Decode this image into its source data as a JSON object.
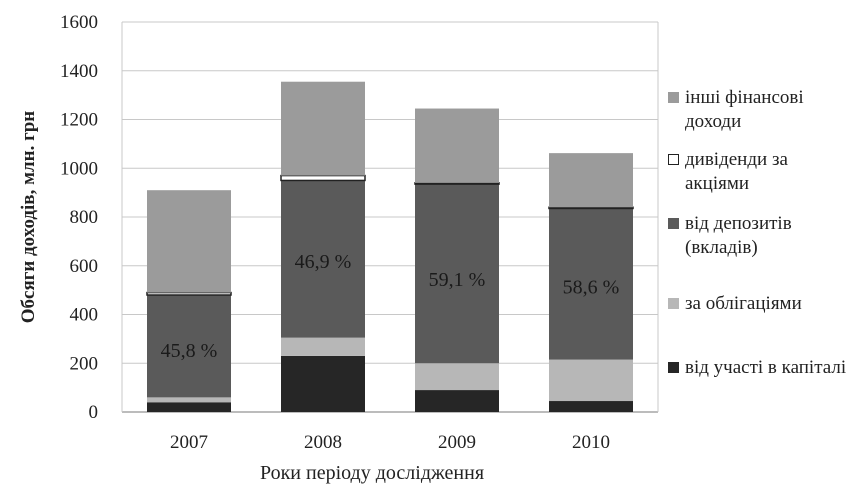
{
  "chart_data": {
    "type": "bar",
    "stacked": true,
    "categories": [
      "2007",
      "2008",
      "2009",
      "2010"
    ],
    "xlabel": "Роки періоду дослідження",
    "ylabel": "Обсяги доходів, млн. грн",
    "ylim": [
      0,
      1600
    ],
    "yticks": [
      "0",
      "200",
      "400",
      "600",
      "800",
      "1000",
      "1200",
      "1400",
      "1600"
    ],
    "grid": true,
    "legend_position": "right",
    "series": [
      {
        "name": "від участі в капіталі",
        "color": "#262626",
        "values": [
          40,
          230,
          90,
          45
        ]
      },
      {
        "name": "за облігаціями",
        "color": "#b7b7b7",
        "values": [
          20,
          75,
          110,
          170
        ]
      },
      {
        "name": "від депозитів (вкладів)",
        "color": "#5a5a5a",
        "values": [
          420,
          645,
          735,
          620
        ]
      },
      {
        "name": "дивіденди за акціями",
        "color": "#ffffff",
        "values": [
          10,
          20,
          5,
          5
        ]
      },
      {
        "name": "інші фінансові доходи",
        "color": "#9b9b9b",
        "values": [
          420,
          385,
          305,
          222
        ]
      }
    ],
    "annotations": [
      {
        "category": "2007",
        "text": "45,8 %",
        "y": 255
      },
      {
        "category": "2008",
        "text": "46,9 %",
        "y": 620
      },
      {
        "category": "2009",
        "text": "59,1 %",
        "y": 545
      },
      {
        "category": "2010",
        "text": "58,6 %",
        "y": 515
      }
    ]
  },
  "legend": [
    {
      "label": "інші фінансові доходи",
      "color": "#9b9b9b"
    },
    {
      "label": "дивіденди за акціями",
      "color": "#ffffff"
    },
    {
      "label": "від депозитів (вкладів)",
      "color": "#5a5a5a"
    },
    {
      "label": "за облігаціями",
      "color": "#b7b7b7"
    },
    {
      "label": "від участі в капіталі",
      "color": "#262626"
    }
  ]
}
